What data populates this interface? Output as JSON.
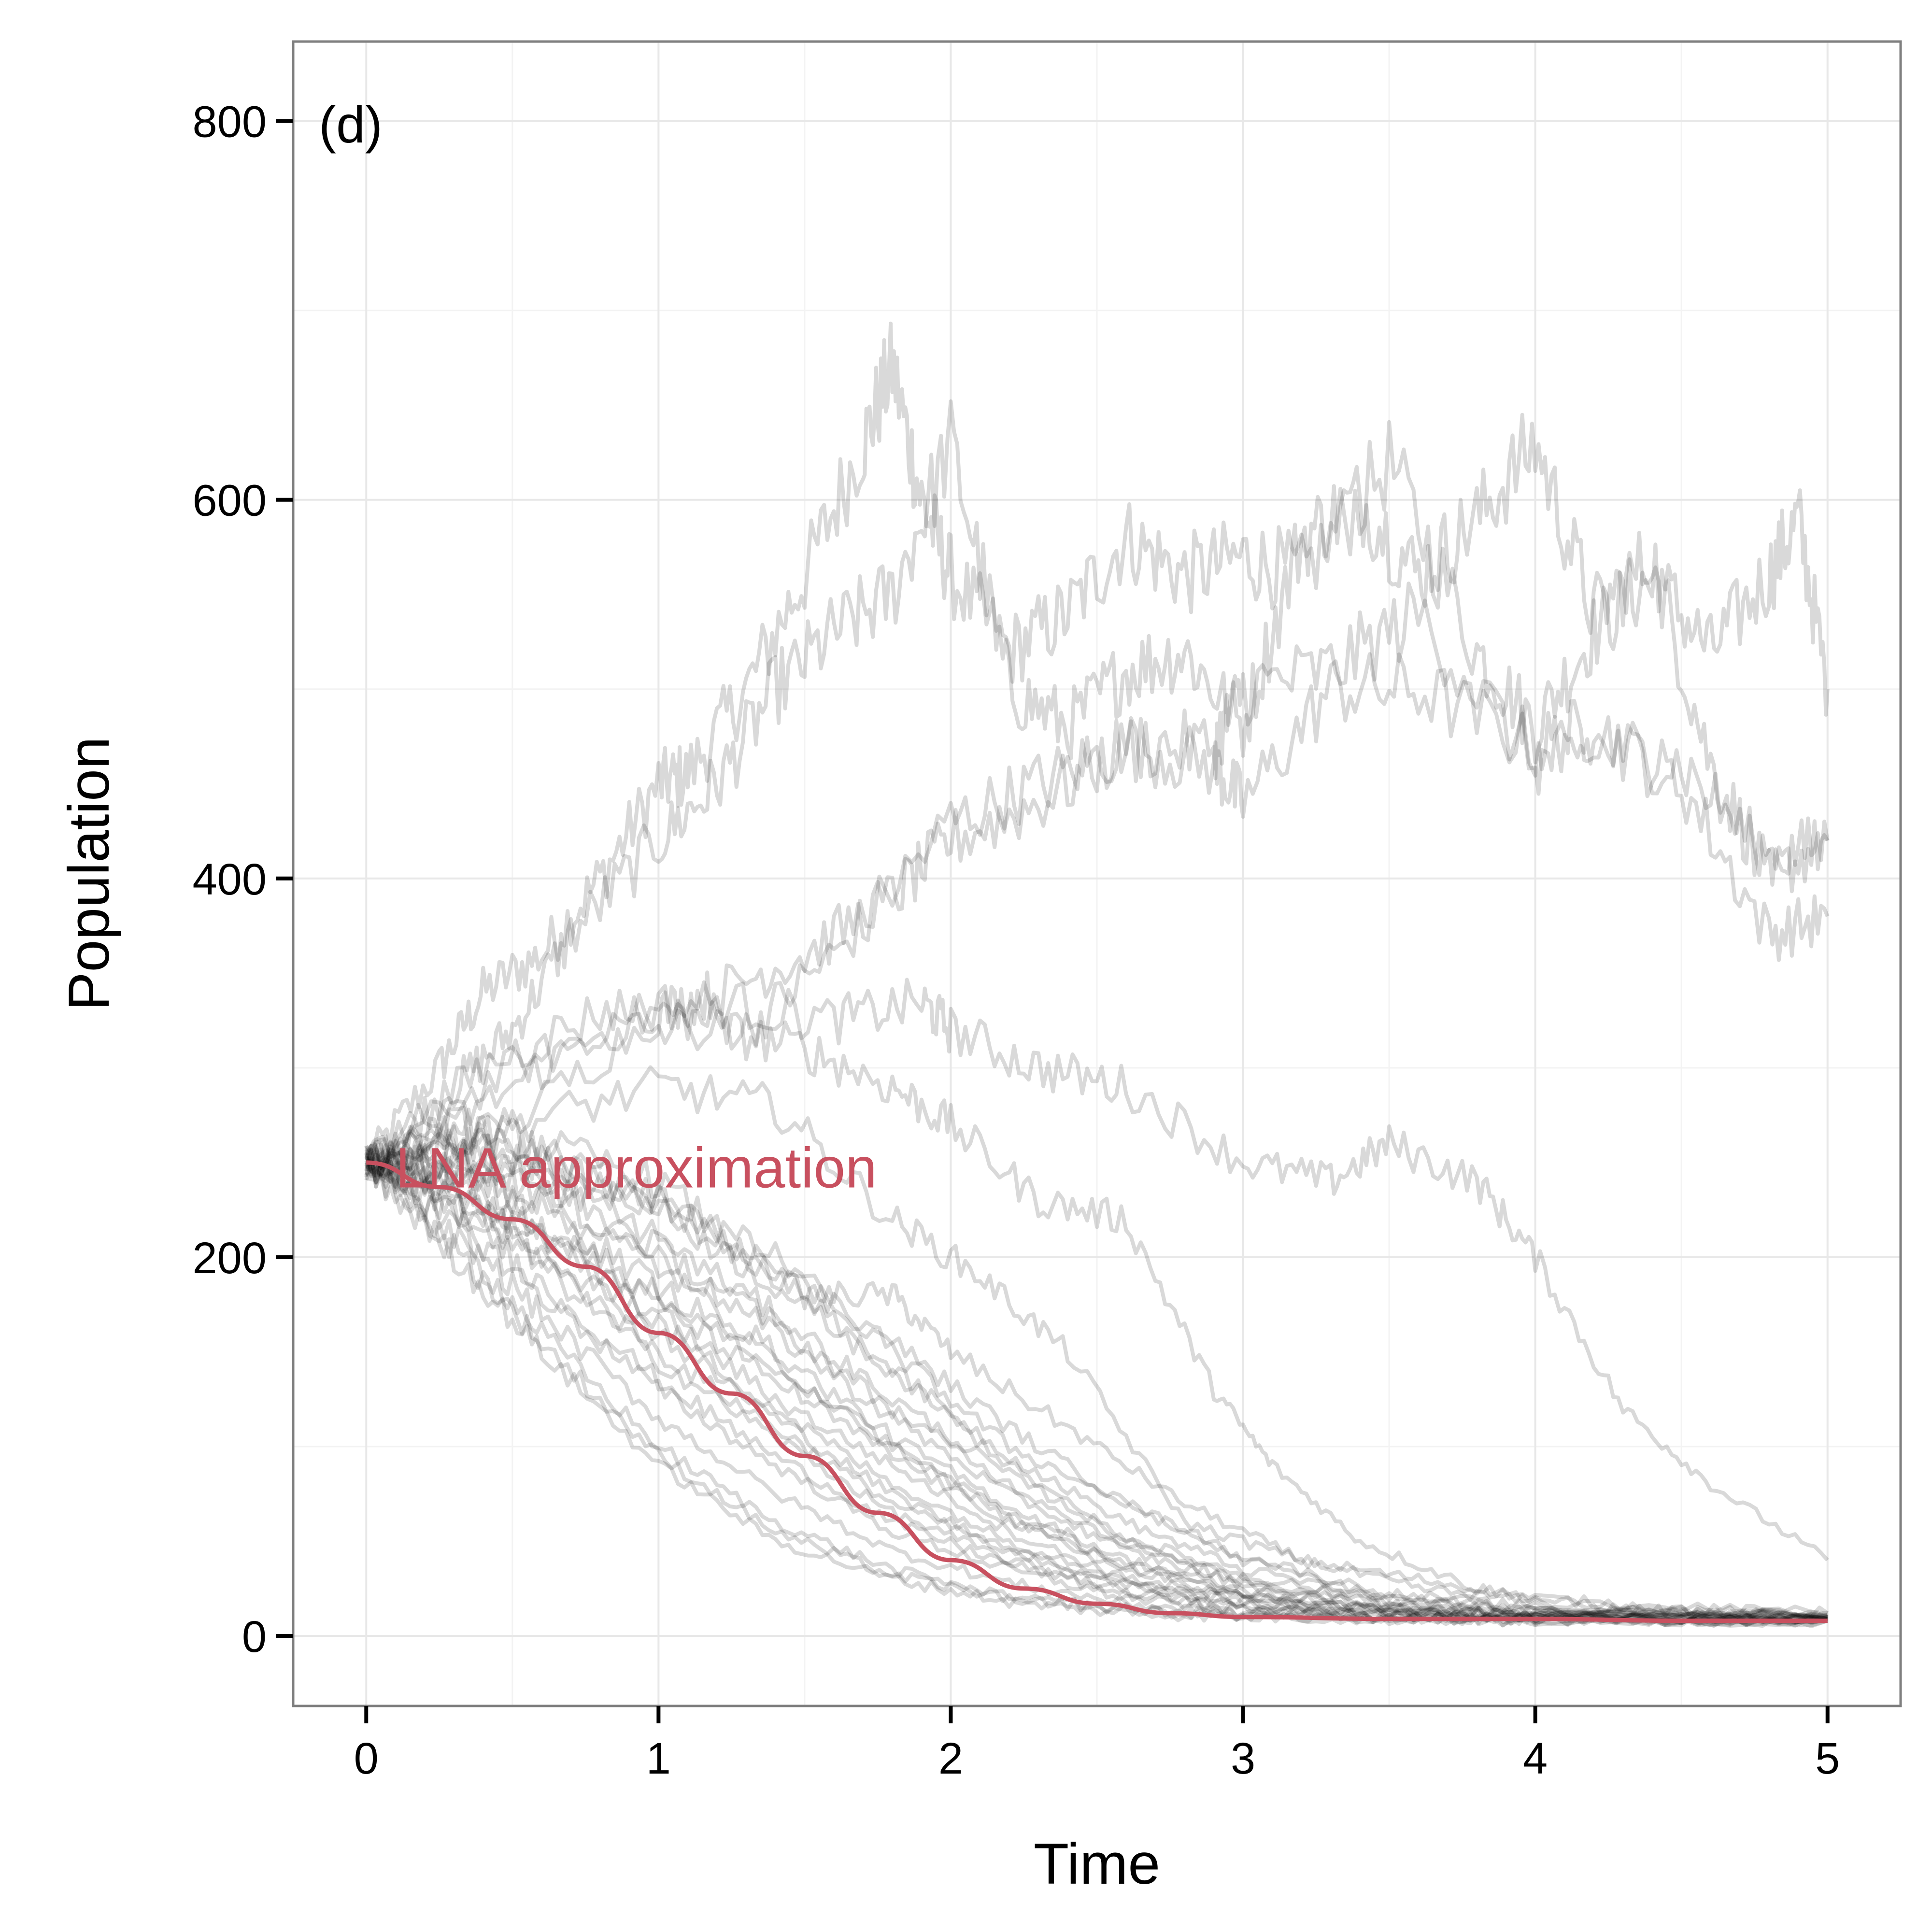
{
  "chart_data": {
    "type": "line",
    "panel_label": "(d)",
    "xlabel": "Time",
    "ylabel": "Population",
    "xlim": [
      -0.25,
      5.25
    ],
    "ylim": [
      -37,
      842
    ],
    "x_ticks": [
      0,
      1,
      2,
      3,
      4,
      5
    ],
    "y_ticks": [
      0,
      200,
      400,
      600,
      800
    ],
    "x_tick_labels": [
      "0",
      "1",
      "2",
      "3",
      "4",
      "5"
    ],
    "y_tick_labels": [
      "0",
      "200",
      "400",
      "600",
      "800"
    ],
    "grid": true,
    "trajectory_color": "#000000",
    "trajectory_opacity": 0.15,
    "lna_color": "#c8505f",
    "annotation": {
      "text": "LNA approximation",
      "x": 0.1,
      "y": 247
    },
    "lna_curve": {
      "x": [
        0,
        0.25,
        0.5,
        0.75,
        1.0,
        1.25,
        1.5,
        1.75,
        2.0,
        2.25,
        2.5,
        2.75,
        3.0,
        3.5,
        4.0,
        4.5,
        5.0
      ],
      "y": [
        250,
        237,
        220,
        195,
        160,
        128,
        95,
        65,
        40,
        25,
        17,
        12,
        10,
        9,
        9,
        8,
        8
      ]
    },
    "trajectories": [
      {
        "x": [
          0,
          0.25,
          0.4,
          0.6,
          0.8,
          1.0,
          1.1,
          1.3,
          1.5,
          1.7,
          1.8,
          1.9,
          2.0,
          2.2,
          2.4,
          2.6,
          2.8,
          3.0,
          3.2,
          3.5,
          3.8,
          4.0,
          4.2,
          4.4,
          4.6,
          4.8,
          4.9,
          5.0
        ],
        "y": [
          250,
          300,
          340,
          360,
          400,
          450,
          455,
          500,
          560,
          630,
          670,
          600,
          560,
          520,
          540,
          580,
          560,
          570,
          560,
          620,
          520,
          480,
          530,
          560,
          520,
          560,
          590,
          500
        ]
      },
      {
        "x": [
          0,
          0.3,
          0.5,
          0.7,
          1.0,
          1.2,
          1.4,
          1.6,
          1.8,
          2.0,
          2.2,
          2.4,
          2.6,
          2.8,
          3.0,
          3.2,
          3.4,
          3.6,
          3.8,
          4.0,
          4.2,
          4.4,
          4.6,
          4.8,
          5.0
        ],
        "y": [
          250,
          290,
          320,
          370,
          420,
          450,
          500,
          530,
          550,
          630,
          500,
          480,
          510,
          520,
          480,
          580,
          600,
          560,
          590,
          630,
          540,
          570,
          460,
          400,
          420
        ]
      },
      {
        "x": [
          0,
          0.5,
          1.0,
          1.3,
          1.6,
          2.0,
          2.3,
          2.6,
          2.9,
          3.0,
          3.3,
          3.6,
          4.0,
          4.2,
          4.5,
          4.8,
          5.0
        ],
        "y": [
          250,
          300,
          330,
          320,
          360,
          430,
          450,
          470,
          460,
          440,
          500,
          500,
          470,
          480,
          450,
          370,
          380
        ]
      },
      {
        "x": [
          0,
          0.5,
          1.0,
          1.2,
          1.5,
          1.8,
          2.0,
          2.3,
          2.6,
          2.9,
          3.0,
          3.3,
          3.6,
          4.0,
          4.2,
          4.5,
          4.8,
          5.0
        ],
        "y": [
          250,
          270,
          330,
          340,
          360,
          390,
          420,
          440,
          470,
          470,
          500,
          510,
          540,
          460,
          470,
          460,
          410,
          420
        ]
      },
      {
        "x": [
          0,
          0.4,
          0.8,
          1.2,
          1.6,
          1.9,
          2.0,
          2.3,
          2.6,
          3.0,
          3.3,
          3.5,
          3.8,
          4.0,
          4.3,
          4.6,
          5.0
        ],
        "y": [
          250,
          300,
          330,
          335,
          325,
          335,
          320,
          300,
          290,
          250,
          240,
          260,
          240,
          200,
          120,
          80,
          40
        ]
      },
      {
        "x": [
          0,
          0.4,
          0.8,
          1.2,
          1.5,
          1.8,
          2.0,
          2.3,
          2.6,
          2.9,
          3.1,
          3.4,
          3.8,
          4.2,
          4.6,
          5.0
        ],
        "y": [
          250,
          280,
          320,
          320,
          310,
          290,
          270,
          230,
          220,
          130,
          90,
          50,
          25,
          15,
          12,
          10
        ]
      },
      {
        "x": [
          0,
          0.5,
          1.0,
          1.4,
          1.8,
          2.1,
          2.4,
          2.8,
          3.2,
          3.6,
          4.0,
          4.5,
          5.0
        ],
        "y": [
          250,
          270,
          290,
          280,
          220,
          190,
          150,
          60,
          40,
          30,
          20,
          14,
          12
        ]
      },
      {
        "x": [
          0,
          0.5,
          1.0,
          1.5,
          1.8,
          2.0,
          2.4,
          2.8,
          3.2,
          3.6,
          4.0,
          5.0
        ],
        "y": [
          250,
          240,
          230,
          180,
          180,
          150,
          110,
          70,
          40,
          25,
          18,
          12
        ]
      },
      {
        "x": [
          0,
          0.3,
          0.6,
          1.0,
          1.4,
          1.8,
          2.2,
          2.6,
          3.0,
          3.5,
          4.0,
          5.0
        ],
        "y": [
          250,
          260,
          250,
          230,
          200,
          150,
          100,
          70,
          40,
          20,
          14,
          10
        ]
      },
      {
        "x": [
          0,
          0.3,
          0.6,
          1.0,
          1.4,
          1.8,
          2.2,
          2.6,
          3.0,
          3.5,
          4.0,
          5.0
        ],
        "y": [
          250,
          270,
          260,
          240,
          190,
          140,
          90,
          50,
          30,
          18,
          12,
          10
        ]
      },
      {
        "x": [
          0,
          0.3,
          0.6,
          1.0,
          1.4,
          1.8,
          2.2,
          2.6,
          3.0,
          3.5,
          4.0,
          5.0
        ],
        "y": [
          250,
          230,
          200,
          150,
          110,
          70,
          45,
          28,
          18,
          12,
          10,
          9
        ]
      },
      {
        "x": [
          0,
          0.3,
          0.6,
          1.0,
          1.4,
          1.8,
          2.2,
          2.6,
          3.0,
          3.5,
          4.0,
          5.0
        ],
        "y": [
          250,
          240,
          210,
          170,
          125,
          90,
          55,
          30,
          20,
          13,
          10,
          9
        ]
      },
      {
        "x": [
          0,
          0.3,
          0.6,
          1.0,
          1.4,
          1.8,
          2.2,
          2.6,
          3.0,
          3.5,
          4.0,
          5.0
        ],
        "y": [
          250,
          220,
          180,
          130,
          90,
          55,
          35,
          20,
          13,
          10,
          9,
          8
        ]
      },
      {
        "x": [
          0,
          0.3,
          0.6,
          1.0,
          1.4,
          1.8,
          2.2,
          2.6,
          3.0,
          3.5,
          4.0,
          5.0
        ],
        "y": [
          250,
          210,
          160,
          100,
          60,
          35,
          20,
          14,
          10,
          9,
          8,
          8
        ]
      },
      {
        "x": [
          0,
          0.3,
          0.6,
          1.0,
          1.4,
          1.8,
          2.2,
          2.6,
          3.0,
          3.5,
          4.0,
          5.0
        ],
        "y": [
          250,
          200,
          150,
          90,
          50,
          30,
          18,
          12,
          10,
          9,
          8,
          8
        ]
      },
      {
        "x": [
          0,
          0.3,
          0.6,
          1.0,
          1.4,
          1.8,
          2.2,
          2.6,
          3.0,
          3.5,
          4.0,
          5.0
        ],
        "y": [
          250,
          245,
          225,
          185,
          145,
          100,
          65,
          38,
          22,
          14,
          11,
          9
        ]
      },
      {
        "x": [
          0,
          0.3,
          0.6,
          1.0,
          1.4,
          1.8,
          2.2,
          2.6,
          3.0,
          3.5,
          4.0,
          5.0
        ],
        "y": [
          250,
          255,
          235,
          200,
          160,
          115,
          75,
          45,
          27,
          16,
          12,
          10
        ]
      },
      {
        "x": [
          0,
          0.3,
          0.6,
          1.0,
          1.4,
          1.8,
          2.2,
          2.6,
          3.0,
          3.5,
          4.0,
          5.0
        ],
        "y": [
          250,
          235,
          205,
          160,
          115,
          75,
          45,
          27,
          16,
          11,
          9,
          8
        ]
      },
      {
        "x": [
          0,
          0.3,
          0.6,
          1.0,
          1.4,
          1.8,
          2.2,
          2.6,
          3.0,
          3.5,
          4.0,
          5.0
        ],
        "y": [
          250,
          225,
          195,
          145,
          105,
          65,
          40,
          24,
          15,
          11,
          9,
          8
        ]
      },
      {
        "x": [
          0,
          0.3,
          0.6,
          1.0,
          1.4,
          1.8,
          2.2,
          2.6,
          3.0,
          3.5,
          4.0,
          5.0
        ],
        "y": [
          250,
          265,
          245,
          210,
          170,
          125,
          85,
          52,
          32,
          18,
          13,
          10
        ]
      },
      {
        "x": [
          0,
          0.3,
          0.6,
          1.0,
          1.4,
          1.8,
          2.2,
          2.6,
          3.0,
          3.5,
          4.0,
          5.0
        ],
        "y": [
          250,
          215,
          170,
          115,
          75,
          45,
          28,
          17,
          12,
          10,
          9,
          8
        ]
      },
      {
        "x": [
          0,
          0.3,
          0.6,
          1.0,
          1.4,
          1.8,
          2.2,
          2.6,
          3.0,
          3.5,
          4.0,
          5.0
        ],
        "y": [
          250,
          250,
          230,
          195,
          150,
          105,
          68,
          40,
          24,
          14,
          11,
          9
        ]
      },
      {
        "x": [
          0,
          0.3,
          0.6,
          1.0,
          1.4,
          1.8,
          2.2,
          2.6,
          3.0,
          3.5,
          4.0,
          5.0
        ],
        "y": [
          250,
          230,
          185,
          135,
          95,
          60,
          38,
          22,
          14,
          10,
          9,
          8
        ]
      },
      {
        "x": [
          0,
          0.3,
          0.6,
          1.0,
          1.4,
          1.8,
          2.2,
          2.6,
          3.0,
          3.5,
          4.0,
          5.0
        ],
        "y": [
          250,
          260,
          250,
          225,
          185,
          140,
          95,
          60,
          35,
          20,
          14,
          11
        ]
      },
      {
        "x": [
          0,
          0.3,
          0.6,
          1.0,
          1.4,
          1.8,
          2.2,
          2.6,
          3.0,
          3.5,
          4.0,
          5.0
        ],
        "y": [
          250,
          240,
          215,
          175,
          135,
          95,
          60,
          35,
          21,
          13,
          10,
          9
        ]
      },
      {
        "x": [
          0,
          0.3,
          0.6,
          1.0,
          1.4,
          1.8,
          2.2,
          2.6,
          3.0,
          3.5,
          4.0,
          5.0
        ],
        "y": [
          250,
          270,
          255,
          230,
          195,
          155,
          110,
          70,
          42,
          22,
          15,
          11
        ]
      },
      {
        "x": [
          0,
          0.3,
          0.6,
          1.0,
          1.4,
          1.8,
          2.2,
          2.6,
          3.0,
          3.5,
          4.0,
          5.0
        ],
        "y": [
          250,
          205,
          155,
          95,
          55,
          32,
          20,
          14,
          11,
          9,
          8,
          8
        ]
      },
      {
        "x": [
          0,
          0.3,
          0.6,
          1.0,
          1.4,
          1.8,
          2.2,
          2.6,
          3.0,
          3.5,
          4.0,
          5.0
        ],
        "y": [
          250,
          245,
          220,
          180,
          140,
          100,
          62,
          36,
          22,
          13,
          10,
          9
        ]
      },
      {
        "x": [
          0,
          0.3,
          0.6,
          1.0,
          1.4,
          1.8,
          2.2,
          2.6,
          3.0,
          3.5,
          4.0,
          5.0
        ],
        "y": [
          250,
          235,
          210,
          165,
          120,
          80,
          50,
          30,
          18,
          12,
          10,
          9
        ]
      },
      {
        "x": [
          0,
          0.3,
          0.6,
          1.0,
          1.4,
          1.8,
          2.2,
          2.6,
          3.0,
          3.5,
          4.0,
          5.0
        ],
        "y": [
          250,
          255,
          240,
          205,
          165,
          120,
          80,
          48,
          28,
          16,
          12,
          10
        ]
      }
    ]
  }
}
